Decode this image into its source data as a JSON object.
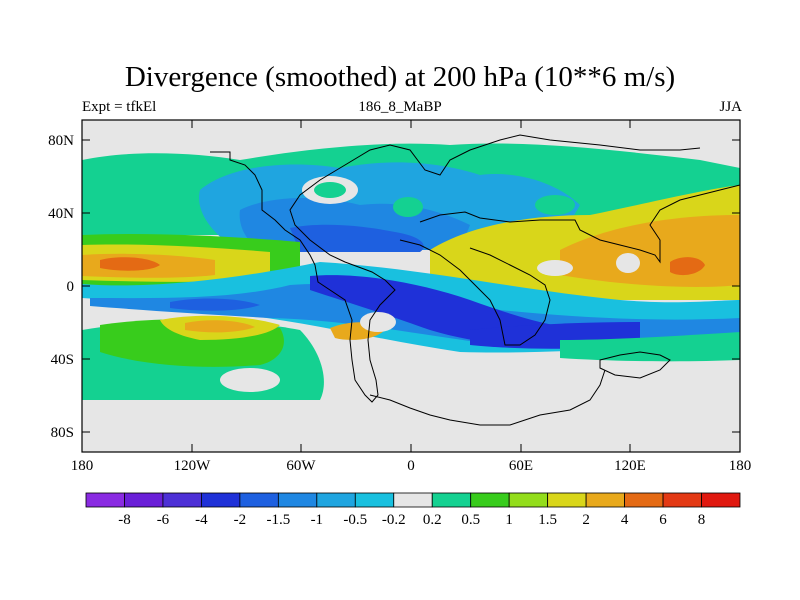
{
  "title": "Divergence (smoothed) at 200 hPa (10**6 m/s)",
  "left_label": "Expt = tfkEl",
  "center_label": "186_8_MaBP",
  "right_label": "JJA",
  "lat_ticks": [
    "80N",
    "40N",
    "0",
    "40S",
    "80S"
  ],
  "lon_ticks": [
    "180",
    "120W",
    "60W",
    "0",
    "60E",
    "120E",
    "180"
  ],
  "colorbar": {
    "labels": [
      "-8",
      "-6",
      "-4",
      "-2",
      "-1.5",
      "-1",
      "-0.5",
      "-0.2",
      "0.2",
      "0.5",
      "1",
      "1.5",
      "2",
      "4",
      "6",
      "8"
    ],
    "colors": [
      "#8a2be2",
      "#6a1fd8",
      "#4d30d6",
      "#1f31d8",
      "#1e60e0",
      "#1f87e2",
      "#1fa5e0",
      "#19c0df",
      "#e6e6e6",
      "#14d191",
      "#38cc1c",
      "#93dd1b",
      "#d9d61a",
      "#e8a91c",
      "#e46a14",
      "#e33914",
      "#e0180f"
    ]
  },
  "colors": {
    "background": "#e6e6e6",
    "coastline": "#000000"
  }
}
